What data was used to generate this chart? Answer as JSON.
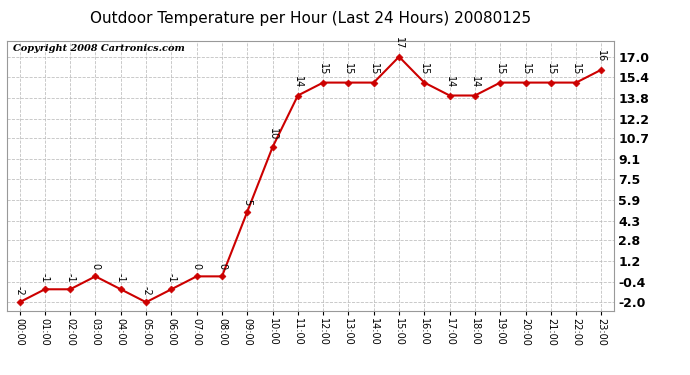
{
  "title": "Outdoor Temperature per Hour (Last 24 Hours) 20080125",
  "copyright": "Copyright 2008 Cartronics.com",
  "hours": [
    "00:00",
    "01:00",
    "02:00",
    "03:00",
    "04:00",
    "05:00",
    "06:00",
    "07:00",
    "08:00",
    "09:00",
    "10:00",
    "11:00",
    "12:00",
    "13:00",
    "14:00",
    "15:00",
    "16:00",
    "17:00",
    "18:00",
    "19:00",
    "20:00",
    "21:00",
    "22:00",
    "23:00"
  ],
  "temps": [
    -2,
    -1,
    -1,
    0,
    -1,
    -2,
    -1,
    0,
    0,
    5,
    10,
    14,
    15,
    15,
    15,
    17,
    15,
    14,
    14,
    15,
    15,
    15,
    15,
    16
  ],
  "yticks": [
    -2.0,
    -0.4,
    1.2,
    2.8,
    4.3,
    5.9,
    7.5,
    9.1,
    10.7,
    12.2,
    13.8,
    15.4,
    17.0
  ],
  "ylim": [
    -2.7,
    18.2
  ],
  "line_color": "#cc0000",
  "marker_color": "#cc0000",
  "bg_color": "#ffffff",
  "grid_color": "#bbbbbb",
  "title_fontsize": 11,
  "copyright_fontsize": 7,
  "ytick_fontsize": 9,
  "xtick_fontsize": 7,
  "annot_fontsize": 7
}
